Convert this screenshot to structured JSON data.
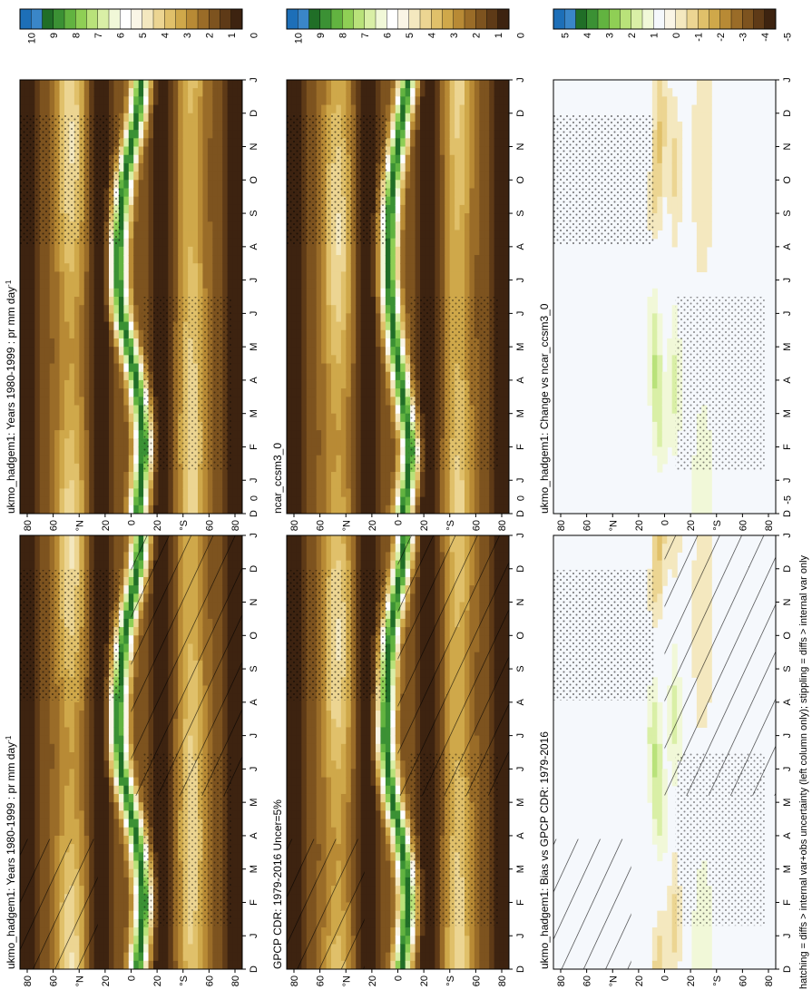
{
  "footnote": "hatching = diffs > internal var+obs uncertainty (left column only); stippling = diffs > internal var only",
  "months": [
    "D",
    "J",
    "F",
    "M",
    "A",
    "M",
    "J",
    "J",
    "A",
    "S",
    "O",
    "N",
    "D",
    "J"
  ],
  "lat_ticks": [
    "80",
    "60",
    "°N",
    "20",
    "0",
    "20",
    "°S",
    "60",
    "80"
  ],
  "colors": {
    "abs_scale": [
      "#3d2310",
      "#5e3a17",
      "#7d531f",
      "#9a6c28",
      "#b88a35",
      "#cfa84a",
      "#e0c06a",
      "#ecd592",
      "#f4e8bf",
      "#faf5e6",
      "#ffffff",
      "#f1f8d8",
      "#d9efa6",
      "#b9e27a",
      "#8fcf55",
      "#62b340",
      "#3b9134",
      "#206e27",
      "#3a86c8",
      "#1d6fb8"
    ],
    "diff_scale": [
      "#3d2310",
      "#5e3a17",
      "#7d531f",
      "#9a6c28",
      "#b88a35",
      "#cfa84a",
      "#e0c06a",
      "#ecd592",
      "#f4e8bf",
      "#faf5e6",
      "#f5f8fc",
      "#f1f8d8",
      "#d9efa6",
      "#b9e27a",
      "#8fcf55",
      "#62b340",
      "#3b9134",
      "#206e27",
      "#3a86c8",
      "#1d6fb8"
    ],
    "diff_bg": "#f5f8fc"
  },
  "panels": [
    {
      "id": "p1",
      "title": "ukmo_hadgem1: Years 1980-1999 : pr mm day",
      "title_sup": "-1",
      "kind": "abs",
      "hatch": true,
      "stipple": true,
      "colorbar_ticks": [
        "10",
        "9",
        "8",
        "7",
        "6",
        "5",
        "4",
        "3",
        "2",
        "1",
        "0"
      ]
    },
    {
      "id": "p2",
      "title": "ukmo_hadgem1: Years 1980-1999 : pr mm day",
      "title_sup": "-1",
      "kind": "abs",
      "hatch": false,
      "stipple": true,
      "colorbar_ticks": [
        "10",
        "9",
        "8",
        "7",
        "6",
        "5",
        "4",
        "3",
        "2",
        "1",
        "0"
      ]
    },
    {
      "id": "p3",
      "title": "GPCP CDR: 1979-2016 Uncer=5%",
      "title_sup": "",
      "kind": "abs",
      "hatch": true,
      "stipple": true,
      "colorbar_ticks": [
        "10",
        "9",
        "8",
        "7",
        "6",
        "5",
        "4",
        "3",
        "2",
        "1",
        "0"
      ]
    },
    {
      "id": "p4",
      "title": "ncar_ccsm3_0",
      "title_sup": "",
      "kind": "abs",
      "hatch": false,
      "stipple": true,
      "colorbar_ticks": [
        "10",
        "9",
        "8",
        "7",
        "6",
        "5",
        "4",
        "3",
        "2",
        "1",
        "0"
      ]
    },
    {
      "id": "p5",
      "title": "ukmo_hadgem1: Bias vs GPCP CDR: 1979-2016",
      "title_sup": "",
      "kind": "diff",
      "hatch": true,
      "stipple": true,
      "colorbar_ticks": [
        "5",
        "4",
        "3",
        "2",
        "1",
        "0",
        "-1",
        "-2",
        "-3",
        "-4",
        "-5"
      ]
    },
    {
      "id": "p6",
      "title": "ukmo_hadgem1: Change vs ncar_ccsm3_0",
      "title_sup": "",
      "kind": "diff",
      "hatch": false,
      "stipple": true,
      "colorbar_ticks": [
        "5",
        "4",
        "3",
        "2",
        "1",
        "0",
        "-1",
        "-2",
        "-3",
        "-4",
        "-5"
      ]
    }
  ],
  "chart_data": [
    {
      "type": "heatmap",
      "title": "ukmo_hadgem1: Years 1980-1999 : pr mm day-1",
      "x": "latitude (80S..80N)",
      "y": "month (D..J)",
      "zlim": [
        0,
        10
      ],
      "units": "mm day-1",
      "itcz_lat_by_month": [
        -5,
        -8,
        -10,
        -8,
        -4,
        2,
        8,
        10,
        10,
        8,
        5,
        0,
        -5,
        -8
      ],
      "max_itcz": 10,
      "legend": "colorbar right"
    },
    {
      "type": "heatmap",
      "title": "ukmo_hadgem1: Years 1980-1999 : pr mm day-1",
      "zlim": [
        0,
        10
      ],
      "units": "mm day-1",
      "itcz_lat_by_month": [
        -5,
        -8,
        -10,
        -8,
        -4,
        2,
        8,
        10,
        10,
        8,
        5,
        0,
        -5,
        -8
      ]
    },
    {
      "type": "heatmap",
      "title": "GPCP CDR: 1979-2016 Uncer=5%",
      "zlim": [
        0,
        10
      ],
      "units": "mm day-1",
      "itcz_lat_by_month": [
        -3,
        -6,
        -8,
        -6,
        -2,
        4,
        8,
        10,
        9,
        8,
        6,
        2,
        -3,
        -6
      ]
    },
    {
      "type": "heatmap",
      "title": "ncar_ccsm3_0",
      "zlim": [
        0,
        10
      ],
      "units": "mm day-1",
      "itcz_lat_by_month": [
        -4,
        -8,
        -10,
        -6,
        -2,
        2,
        5,
        7,
        7,
        6,
        4,
        0,
        -4,
        -8
      ]
    },
    {
      "type": "heatmap",
      "title": "ukmo_hadgem1: Bias vs GPCP CDR: 1979-2016",
      "zlim": [
        -5,
        5
      ],
      "units": "mm day-1"
    },
    {
      "type": "heatmap",
      "title": "ukmo_hadgem1: Change vs ncar_ccsm3_0",
      "zlim": [
        -5,
        5
      ],
      "units": "mm day-1"
    }
  ]
}
